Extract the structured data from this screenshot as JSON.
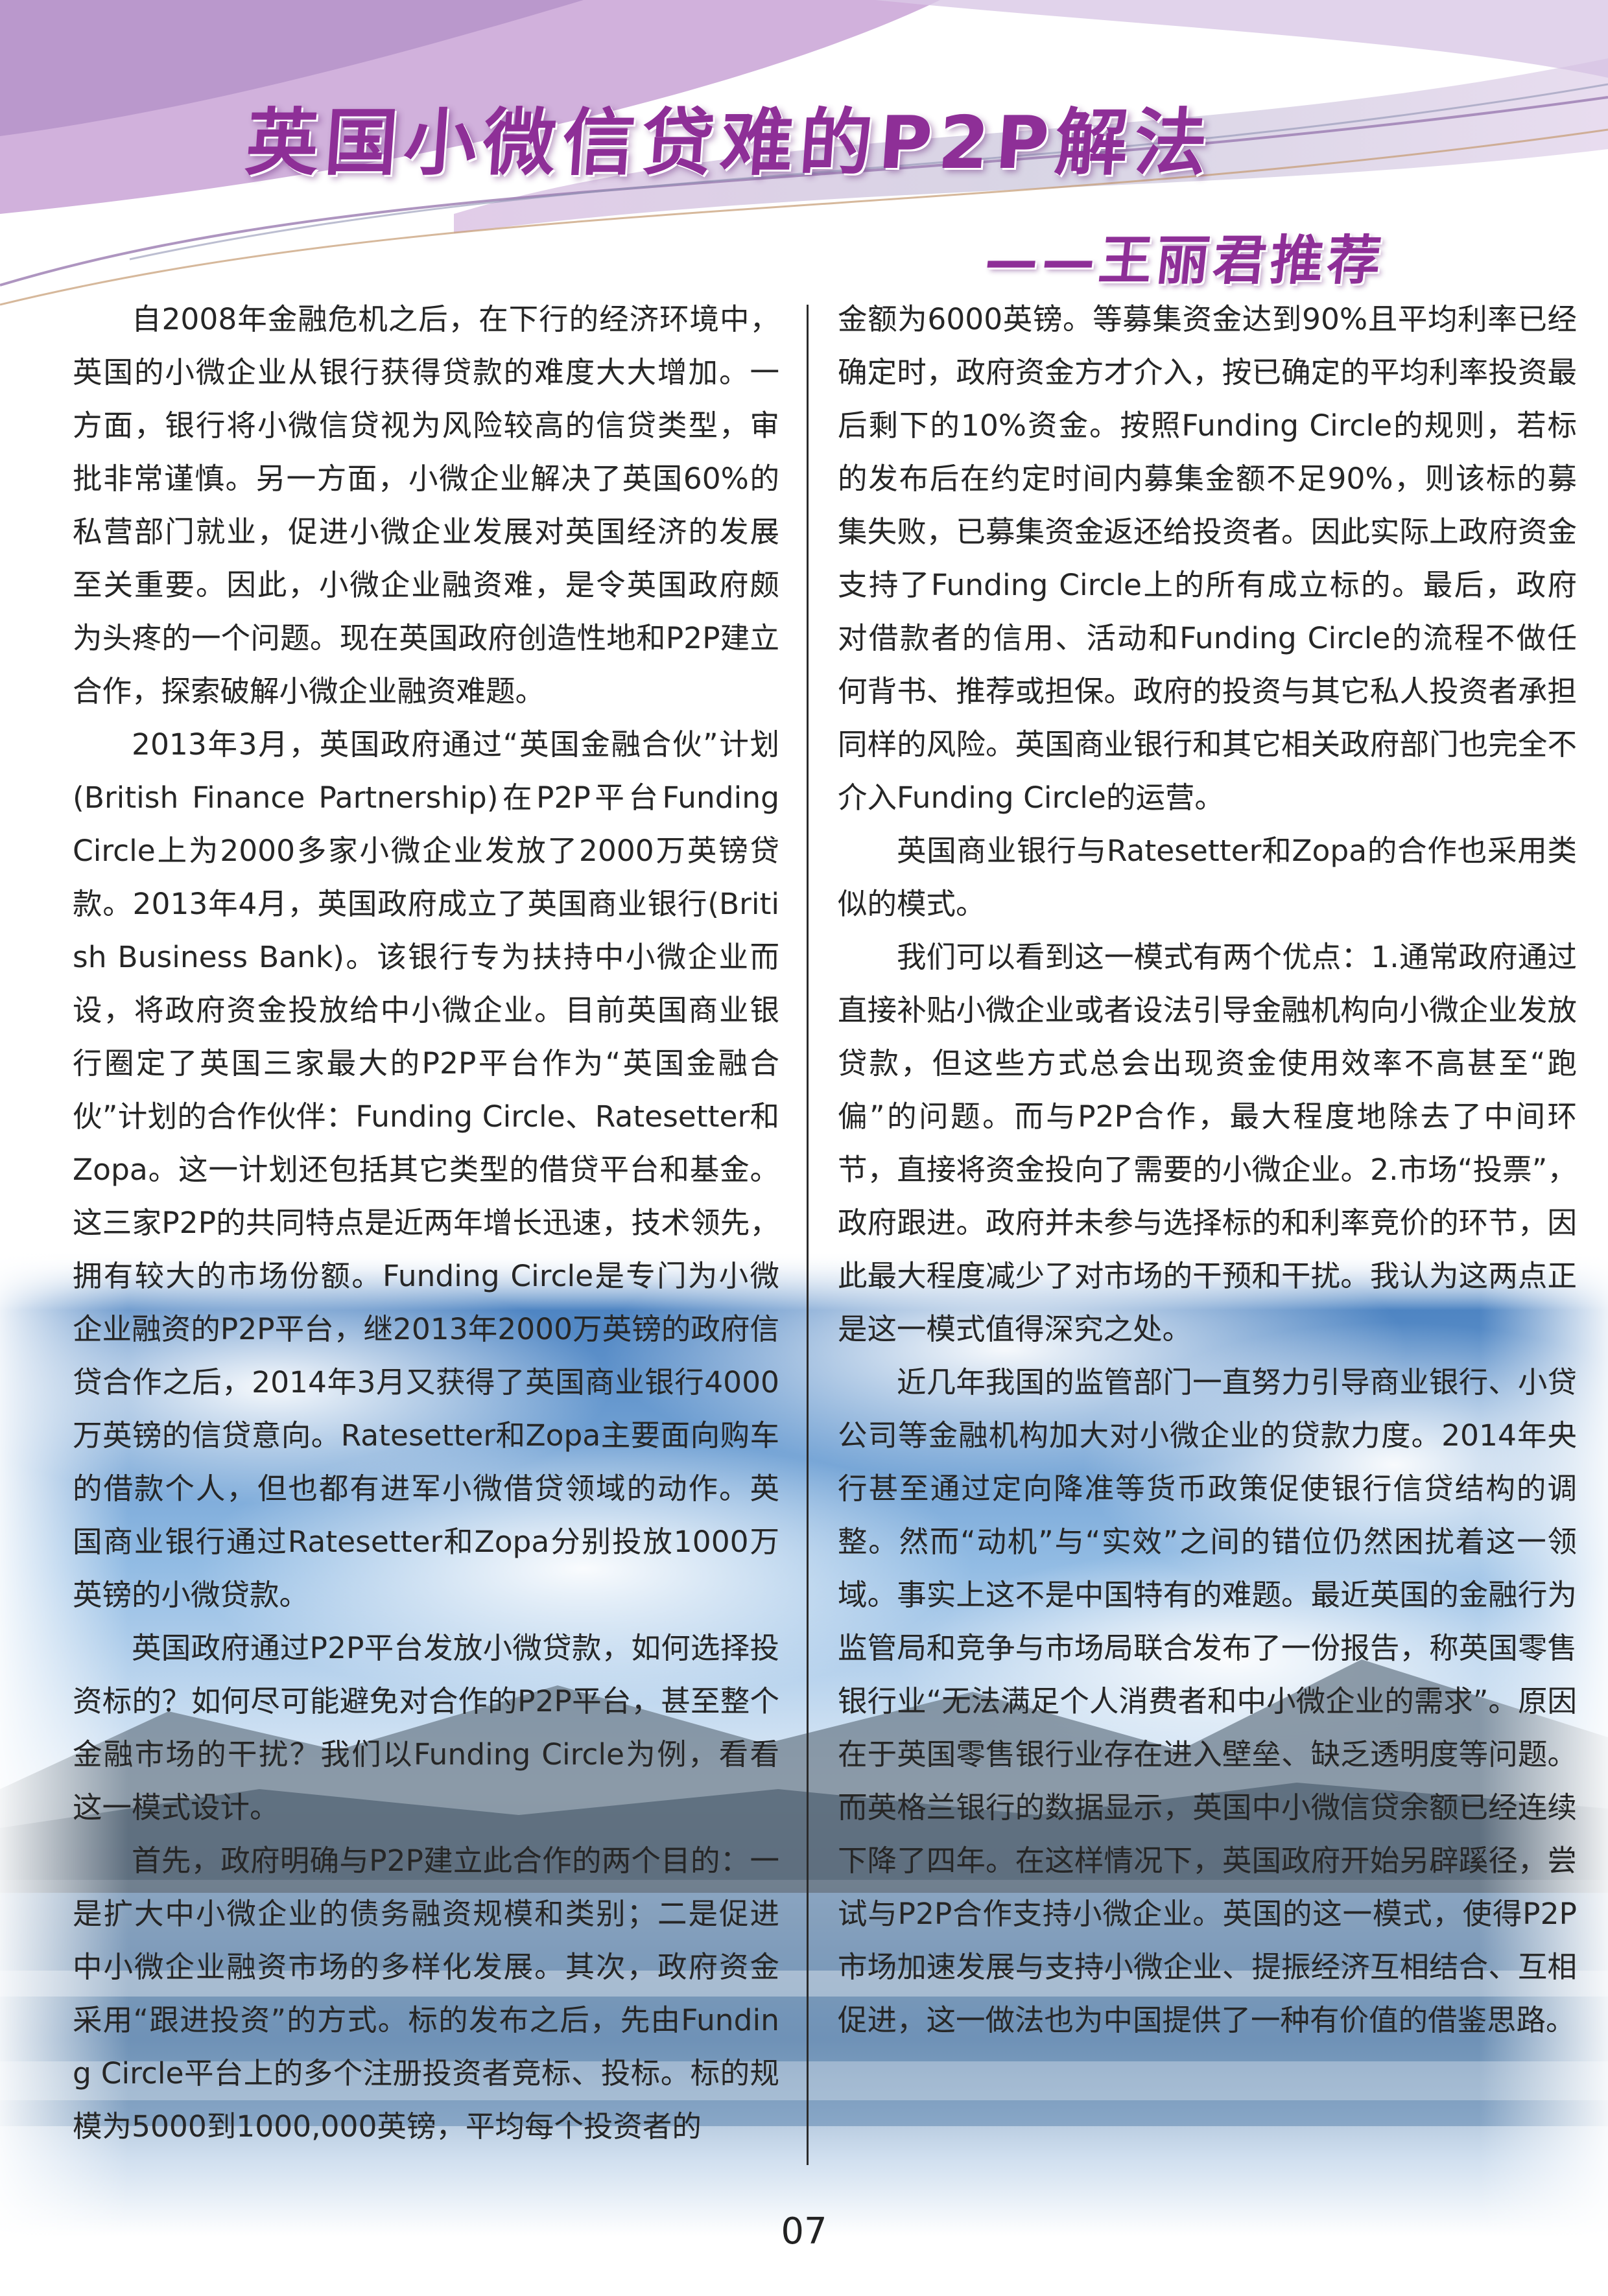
{
  "header": {
    "title": "英国小微信贷难的P2P解法",
    "subtitle": "——王丽君推荐"
  },
  "article": {
    "left_paragraphs": [
      "自2008年金融危机之后，在下行的经济环境中，英国的小微企业从银行获得贷款的难度大大增加。一方面，银行将小微信贷视为风险较高的信贷类型，审批非常谨慎。另一方面，小微企业解决了英国60%的私营部门就业，促进小微企业发展对英国经济的发展至关重要。因此，小微企业融资难，是令英国政府颇为头疼的一个问题。现在英国政府创造性地和P2P建立合作，探索破解小微企业融资难题。",
      "2013年3月，英国政府通过“英国金融合伙”计划(British Finance Partnership)在P2P平台Funding Circle上为2000多家小微企业发放了2000万英镑贷款。2013年4月，英国政府成立了英国商业银行(British Business Bank)。该银行专为扶持中小微企业而设，将政府资金投放给中小微企业。目前英国商业银行圈定了英国三家最大的P2P平台作为“英国金融合伙”计划的合作伙伴：Funding Circle、Ratesetter和Zopa。这一计划还包括其它类型的借贷平台和基金。这三家P2P的共同特点是近两年增长迅速，技术领先，拥有较大的市场份额。Funding Circle是专门为小微企业融资的P2P平台，继2013年2000万英镑的政府信贷合作之后，2014年3月又获得了英国商业银行4000万英镑的信贷意向。Ratesetter和Zopa主要面向购车的借款个人，但也都有进军小微借贷领域的动作。英国商业银行通过Ratesetter和Zopa分别投放1000万英镑的小微贷款。",
      "英国政府通过P2P平台发放小微贷款，如何选择投资标的？如何尽可能避免对合作的P2P平台，甚至整个金融市场的干扰？我们以Funding Circle为例，看看这一模式设计。",
      "首先，政府明确与P2P建立此合作的两个目的：一是扩大中小微企业的债务融资规模和类别；二是促进中小微企业融资市场的多样化发展。其次，政府资金采用“跟进投资”的方式。标的发布之后，先由Funding Circle平台上的多个注册投资者竞标、投标。标的规模为5000到1000,000英镑，平均每个投资者的"
    ],
    "right_paragraphs_cont": "金额为6000英镑。等募集资金达到90%且平均利率已经确定时，政府资金方才介入，按已确定的平均利率投资最后剩下的10%资金。按照Funding Circle的规则，若标的发布后在约定时间内募集金额不足90%，则该标的募集失败，已募集资金返还给投资者。因此实际上政府资金支持了Funding Circle上的所有成立标的。最后，政府对借款者的信用、活动和Funding Circle的流程不做任何背书、推荐或担保。政府的投资与其它私人投资者承担同样的风险。英国商业银行和其它相关政府部门也完全不介入Funding Circle的运营。",
    "right_paragraphs": [
      "英国商业银行与Ratesetter和Zopa的合作也采用类似的模式。",
      "我们可以看到这一模式有两个优点：1.通常政府通过直接补贴小微企业或者设法引导金融机构向小微企业发放贷款，但这些方式总会出现资金使用效率不高甚至“跑偏”的问题。而与P2P合作，最大程度地除去了中间环节，直接将资金投向了需要的小微企业。2.市场“投票”，政府跟进。政府并未参与选择标的和利率竞价的环节，因此最大程度减少了对市场的干预和干扰。我认为这两点正是这一模式值得深究之处。",
      "近几年我国的监管部门一直努力引导商业银行、小贷公司等金融机构加大对小微企业的贷款力度。2014年央行甚至通过定向降准等货币政策促使银行信贷结构的调整。然而“动机”与“实效”之间的错位仍然困扰着这一领域。事实上这不是中国特有的难题。最近英国的金融行为监管局和竞争与市场局联合发布了一份报告，称英国零售银行业“无法满足个人消费者和中小微企业的需求”。原因在于英国零售银行业存在进入壁垒、缺乏透明度等问题。而英格兰银行的数据显示，英国中小微信贷余额已经连续下降了四年。在这样情况下，英国政府开始另辟蹊径，尝试与P2P合作支持小微企业。英国的这一模式，使得P2P市场加速发展与支持小微企业、提振经济互相结合、互相促进，这一做法也为中国提供了一种有价值的借鉴思路。"
    ]
  },
  "footer": {
    "page_number": "07"
  },
  "colors": {
    "title": "#8e2f97",
    "swoosh_purple": "#b48cc8",
    "swoosh_gray": "#9aa0b4",
    "sky_blue": "#4d8fd1",
    "text": "#262626"
  }
}
